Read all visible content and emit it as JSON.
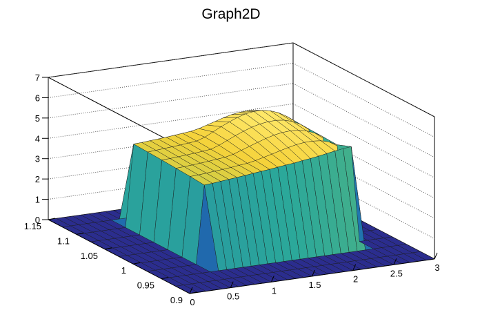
{
  "chart_data": {
    "type": "surface",
    "title": "Graph2D",
    "xlabel": "",
    "ylabel": "",
    "zlabel": "",
    "xlim": [
      0,
      3
    ],
    "ylim": [
      0.9,
      1.15
    ],
    "zlim": [
      0,
      7
    ],
    "x_ticks": [
      "0",
      "0.5",
      "1",
      "1.5",
      "2",
      "2.5",
      "3"
    ],
    "y_ticks": [
      "0.9",
      "0.95",
      "1",
      "1.05",
      "1.1",
      "1.15"
    ],
    "z_ticks": [
      "0",
      "1",
      "2",
      "3",
      "4",
      "5",
      "6",
      "7"
    ],
    "grid": true,
    "colormap": [
      "#2b2d8e",
      "#1f6fb0",
      "#2ba89a",
      "#8fc65a",
      "#f5d23a",
      "#ffe96b"
    ],
    "series": [
      {
        "grid_x": [
          0,
          0.1,
          0.2,
          0.3,
          0.4,
          0.5,
          0.6,
          0.7,
          0.8,
          0.9,
          1.0,
          1.1,
          1.2,
          1.3,
          1.4,
          1.5,
          1.6,
          1.7,
          1.8,
          1.9,
          2.0,
          2.1,
          2.2,
          2.3,
          2.4,
          2.5,
          2.6,
          2.7,
          2.8,
          2.9,
          3.0
        ],
        "grid_y": [
          0.9,
          0.925,
          0.95,
          0.975,
          1.0,
          1.025,
          1.05,
          1.075,
          1.1,
          1.125,
          1.15
        ],
        "z": [
          [
            0,
            0,
            0,
            0,
            0,
            0,
            0,
            0,
            0,
            0,
            0,
            0,
            0,
            0,
            0,
            0,
            0,
            0,
            0,
            0,
            0,
            0,
            0,
            0,
            0,
            0,
            0,
            0,
            0,
            0,
            0
          ],
          [
            0,
            0,
            0,
            0,
            0,
            0,
            0,
            0,
            0,
            0,
            0,
            0,
            0,
            0,
            0,
            0,
            0,
            0,
            0,
            0,
            0,
            0,
            0,
            0,
            0,
            0,
            0,
            0,
            0,
            0,
            0
          ],
          [
            0,
            0,
            0,
            0,
            0,
            0,
            0,
            0,
            0,
            0,
            0,
            0,
            0,
            0,
            0,
            0,
            0,
            0,
            0,
            0,
            0,
            0,
            0,
            0,
            0,
            0,
            0,
            0,
            0,
            0,
            0
          ],
          [
            0,
            0,
            0,
            0,
            0,
            0,
            0,
            3.85,
            3.88,
            3.92,
            3.96,
            4.0,
            4.04,
            4.09,
            4.13,
            4.17,
            4.22,
            4.27,
            4.31,
            4.37,
            4.42,
            4.48,
            4.55,
            4.62,
            4.68,
            4.72,
            0,
            0,
            0,
            0,
            0
          ],
          [
            0,
            0,
            0,
            0,
            0,
            0,
            0,
            3.91,
            3.93,
            3.96,
            4.0,
            4.03,
            4.07,
            4.12,
            4.16,
            4.24,
            4.34,
            4.44,
            4.55,
            4.65,
            4.74,
            4.79,
            4.8,
            4.76,
            4.65,
            4.45,
            0,
            0,
            0,
            0,
            0
          ],
          [
            0,
            0,
            0,
            0,
            0,
            0,
            0,
            3.95,
            3.97,
            4.0,
            4.03,
            4.07,
            4.11,
            4.15,
            4.24,
            4.38,
            4.52,
            4.66,
            4.79,
            4.9,
            4.97,
            5.0,
            4.97,
            4.88,
            4.72,
            4.48,
            0,
            0,
            0,
            0,
            0
          ],
          [
            0,
            0,
            0,
            0,
            0,
            0,
            0,
            3.99,
            4.01,
            4.04,
            4.07,
            4.1,
            4.14,
            4.18,
            4.32,
            4.5,
            4.68,
            4.84,
            4.98,
            5.08,
            5.14,
            5.15,
            5.1,
            4.98,
            4.78,
            4.5,
            0,
            0,
            0,
            0,
            0
          ],
          [
            0,
            0,
            0,
            0,
            0,
            0,
            0,
            4.02,
            4.05,
            4.08,
            4.11,
            4.14,
            4.18,
            4.22,
            4.36,
            4.56,
            4.76,
            4.94,
            5.1,
            5.22,
            5.28,
            5.28,
            5.2,
            5.05,
            4.82,
            4.52,
            0,
            0,
            0,
            0,
            0
          ],
          [
            0,
            0,
            0,
            0,
            0,
            0,
            0,
            4.05,
            4.07,
            4.1,
            4.13,
            4.16,
            4.2,
            4.24,
            4.28,
            4.36,
            4.48,
            4.6,
            4.72,
            4.82,
            4.88,
            4.9,
            4.86,
            4.76,
            4.6,
            4.4,
            0,
            0,
            0,
            0,
            0
          ],
          [
            0,
            0,
            0,
            0,
            0,
            0,
            0,
            0,
            0,
            0,
            0,
            0,
            0,
            0,
            0,
            0,
            0,
            0,
            0,
            0,
            0,
            0,
            0,
            0,
            0,
            0,
            0,
            0,
            0,
            0,
            0
          ],
          [
            0,
            0,
            0,
            0,
            0,
            0,
            0,
            0,
            0,
            0,
            0,
            0,
            0,
            0,
            0,
            0,
            0,
            0,
            0,
            0,
            0,
            0,
            0,
            0,
            0,
            0,
            0,
            0,
            0,
            0,
            0
          ]
        ]
      }
    ]
  }
}
